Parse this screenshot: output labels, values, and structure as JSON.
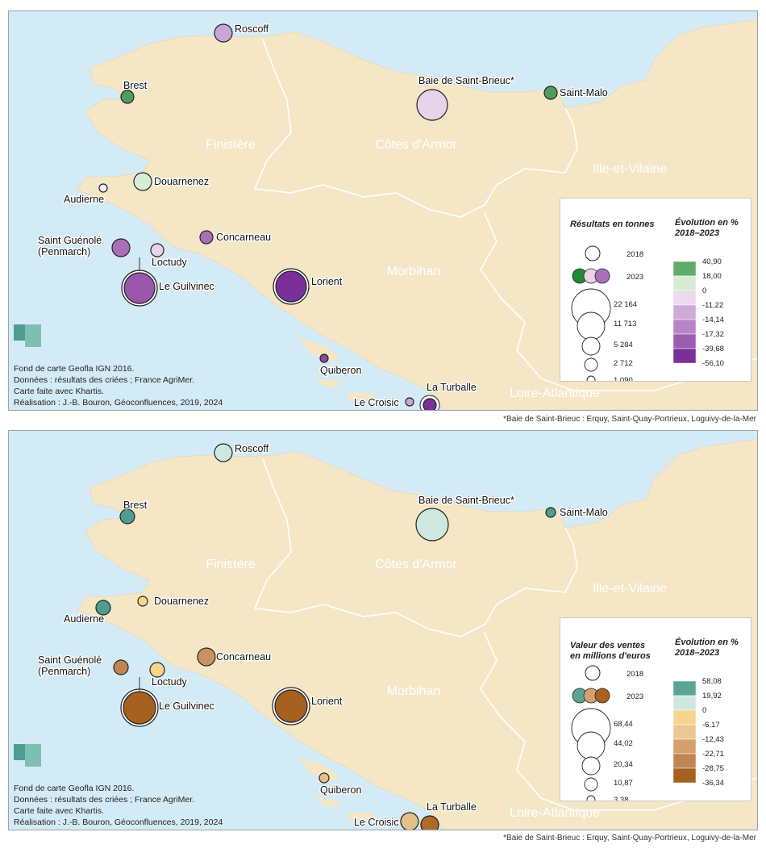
{
  "maps": [
    {
      "id": "tonnes",
      "dept_labels": [
        "Finistère",
        "Côtes d'Armor",
        "Ille-et-Vilaine",
        "Morbihan",
        "Loire-Atlantique"
      ],
      "ports": [
        {
          "name": "Roscoff",
          "color": "#c9a6d6",
          "cls": "m"
        },
        {
          "name": "Brest",
          "color": "#4f9d5d",
          "cls": "s"
        },
        {
          "name": "Baie de Saint-Brieuc*",
          "color": "#e8d3ea",
          "cls": "l"
        },
        {
          "name": "Saint-Malo",
          "color": "#4f9d5d",
          "cls": "s"
        },
        {
          "name": "Douarnenez",
          "color": "#d8edd6",
          "cls": "m"
        },
        {
          "name": "Audierne",
          "color": "#f4e9f5",
          "cls": "xs"
        },
        {
          "name": "Saint Guénolé\n(Penmarch)",
          "color": "#a970b8",
          "cls": "m"
        },
        {
          "name": "Loctudy",
          "color": "#e8d3ea",
          "cls": "s"
        },
        {
          "name": "Concarneau",
          "color": "#a970b8",
          "cls": "s"
        },
        {
          "name": "Le Guilvinec",
          "color": "#9b55ad",
          "cls": "l"
        },
        {
          "name": "Lorient",
          "color": "#7a2f99",
          "cls": "l"
        },
        {
          "name": "Quiberon",
          "color": "#8a4aa0",
          "cls": "xs"
        },
        {
          "name": "Le Croisic",
          "color": "#c9a6d6",
          "cls": "xs"
        },
        {
          "name": "La Turballe",
          "color": "#7a2f99",
          "cls": "s"
        }
      ],
      "legend": {
        "size_title": "Résultats en tonnes",
        "evol_title": "Évolution en %\n2018–2023",
        "year_2018": "2018",
        "year_2023": "2023",
        "size_values": [
          "22 164",
          "11 713",
          "5 284",
          "2 712",
          "1 090"
        ],
        "class_breaks": [
          "40,90",
          "18,00",
          "0",
          "-11,22",
          "-14,14",
          "-17,32",
          "-39,68",
          "-56,10"
        ],
        "class_colors": [
          "#5fac6b",
          "#d6ecd2",
          "#ecd9ef",
          "#cfaad9",
          "#b886c6",
          "#9b5db0",
          "#7a2f99"
        ],
        "sample_2023_colors": [
          "#1f8a3a",
          "#e8d3ea",
          "#a970b8"
        ]
      },
      "credits": [
        "Fond de carte Geofla IGN 2016.",
        "Données : résultats des criées ; France AgriMer.",
        "Carte faite avec Khartis.",
        "Réalisation : J.-B. Bouron, Géoconfluences, 2019, 2024"
      ],
      "footnote": "*Baie de Saint-Brieuc : Erquy, Saint-Quay-Portrieux, Loguivy-de-la-Mer"
    },
    {
      "id": "valeur",
      "dept_labels": [
        "Finistère",
        "Côtes d'Armor",
        "Ille-et-Vilaine",
        "Morbihan",
        "Loire-Atlantique"
      ],
      "ports": [
        {
          "name": "Roscoff",
          "color": "#cfe8df",
          "cls": "m"
        },
        {
          "name": "Brest",
          "color": "#4c9f8e",
          "cls": "s"
        },
        {
          "name": "Baie de Saint-Brieuc*",
          "color": "#cfe8df",
          "cls": "l"
        },
        {
          "name": "Saint-Malo",
          "color": "#4c9f8e",
          "cls": "xs"
        },
        {
          "name": "Douarnenez",
          "color": "#f6d58c",
          "cls": "xs"
        },
        {
          "name": "Audierne",
          "color": "#4c9f8e",
          "cls": "s"
        },
        {
          "name": "Saint Guénolé\n(Penmarch)",
          "color": "#c08550",
          "cls": "s"
        },
        {
          "name": "Loctudy",
          "color": "#f6d58c",
          "cls": "s"
        },
        {
          "name": "Concarneau",
          "color": "#c99360",
          "cls": "m"
        },
        {
          "name": "Le Guilvinec",
          "color": "#a6601f",
          "cls": "l"
        },
        {
          "name": "Lorient",
          "color": "#a6601f",
          "cls": "l"
        },
        {
          "name": "Quiberon",
          "color": "#e6c08a",
          "cls": "xs"
        },
        {
          "name": "Le Croisic",
          "color": "#e6c08a",
          "cls": "m"
        },
        {
          "name": "La Turballe",
          "color": "#b06a28",
          "cls": "m"
        }
      ],
      "legend": {
        "size_title": "Valeur des ventes\nen millions d'euros",
        "evol_title": "Évolution en %\n2018–2023",
        "year_2018": "2018",
        "year_2023": "2023",
        "size_values": [
          "68,44",
          "44,02",
          "20,34",
          "10,87",
          "3,38"
        ],
        "class_breaks": [
          "58,08",
          "19,92",
          "0",
          "-6,17",
          "-12,43",
          "-22,71",
          "-28,75",
          "-36,34"
        ],
        "class_colors": [
          "#5aa595",
          "#cfe8df",
          "#f6d58c",
          "#ecc694",
          "#d4a06e",
          "#c08550",
          "#a6601f"
        ],
        "sample_2023_colors": [
          "#5aa595",
          "#d4a06e",
          "#a6601f"
        ]
      },
      "credits": [
        "Fond de carte Geofla IGN 2016.",
        "Données : résultats des criées ; France AgriMer.",
        "Carte faite avec Khartis.",
        "Réalisation : J.-B. Bouron, Géoconfluences, 2019, 2024"
      ],
      "footnote": "*Baie de Saint-Brieuc : Erquy, Saint-Quay-Portrieux, Loguivy-de-la-Mer"
    }
  ]
}
